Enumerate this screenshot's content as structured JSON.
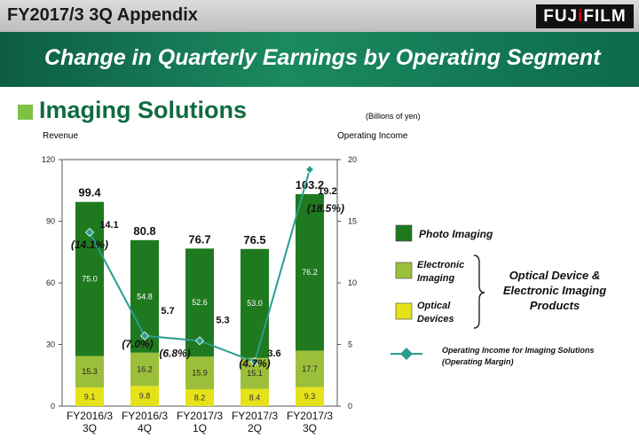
{
  "header": {
    "title": "FY2017/3 3Q Appendix",
    "logo_text_a": "FUJ",
    "logo_text_b": "i",
    "logo_text_c": "FILM"
  },
  "banner": {
    "headline": "Change in Quarterly Earnings by Operating Segment"
  },
  "section": {
    "title": "Imaging Solutions"
  },
  "chart_data": {
    "type": "bar",
    "unit_note": "(Billions of yen)",
    "left_axis_label": "Revenue",
    "right_axis_label": "Operating  Income",
    "left_ylim": [
      0,
      120
    ],
    "right_ylim": [
      0,
      20
    ],
    "left_ticks": [
      "0",
      "30",
      "60",
      "90",
      "120"
    ],
    "right_ticks": [
      "0",
      "5",
      "10",
      "15",
      "20"
    ],
    "categories": [
      [
        "FY2016/3",
        "3Q"
      ],
      [
        "FY2016/3",
        "4Q"
      ],
      [
        "FY2017/3",
        "1Q"
      ],
      [
        "FY2017/3",
        "2Q"
      ],
      [
        "FY2017/3",
        "3Q"
      ]
    ],
    "series": [
      {
        "name": "Optical Devices",
        "color": "#e6e21a",
        "values": [
          9.1,
          9.8,
          8.2,
          8.4,
          9.3
        ]
      },
      {
        "name": "Electronic Imaging",
        "color": "#9bbf3a",
        "values": [
          15.3,
          16.2,
          15.9,
          15.1,
          17.7
        ]
      },
      {
        "name": "Photo Imaging",
        "color": "#1f7a1f",
        "values": [
          75.0,
          54.8,
          52.6,
          53.0,
          76.2
        ]
      }
    ],
    "totals": [
      "99.4",
      "80.8",
      "76.7",
      "76.5",
      "103.2"
    ],
    "operating_income": {
      "name": "Operating Income for Imaging Solutions (Operating Margin)",
      "values": [
        14.1,
        5.7,
        5.3,
        3.6,
        19.2
      ],
      "labels": [
        "14.1",
        "5.7",
        "5.3",
        "3.6",
        "19.2"
      ],
      "margins": [
        "(14.1%)",
        "(7.0%)",
        "(6.8%)",
        "(4.7%)",
        "(18.5%)"
      ],
      "color": "#2a9d8f"
    },
    "legend": {
      "photo": "Photo Imaging",
      "electronic": [
        "Electronic",
        "Imaging"
      ],
      "optical": [
        "Optical",
        "Devices"
      ],
      "group": [
        "Optical Device &",
        "Electronic Imaging",
        "Products"
      ],
      "line": [
        "Operating Income for Imaging Solutions",
        "(Operating Margin)"
      ]
    }
  }
}
